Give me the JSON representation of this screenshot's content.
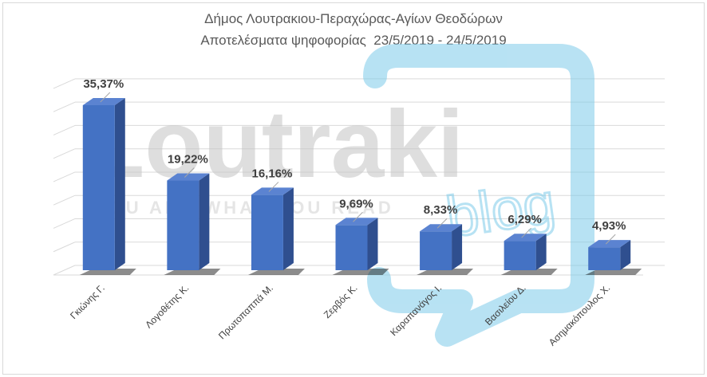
{
  "chart_data": {
    "type": "bar",
    "title_line1": "Δήμος Λουτρακιου-Περαχώρας-Αγίων Θεοδώρων",
    "title_line2": "Αποτελέσματα ψηφοφορίας  23/5/2019 - 24/5/2019",
    "categories": [
      "Γκιώνης Γ.",
      "Λογοθέτης Κ.",
      "Πρωτοπαππά Μ.",
      "Ζερβός Κ.",
      "Καραπανάγος Ι.",
      "Βασιλείου Δ.",
      "Ασημακόπουλος Χ."
    ],
    "values": [
      35.37,
      19.22,
      16.16,
      9.69,
      8.33,
      6.29,
      4.93
    ],
    "data_labels": [
      "35,37%",
      "19,22%",
      "16,16%",
      "9,69%",
      "8,33%",
      "6,29%",
      "4,93%"
    ],
    "ylim": [
      0,
      40
    ],
    "grid": true,
    "three_d": true,
    "bar_color": "#4472c4"
  },
  "watermark": {
    "main": "Loutraki",
    "tagline": "YOU ARE WHAT YOU READ",
    "sub": "blog",
    "color_text": "#c8c8c8",
    "color_accent": "#7ecbea"
  }
}
